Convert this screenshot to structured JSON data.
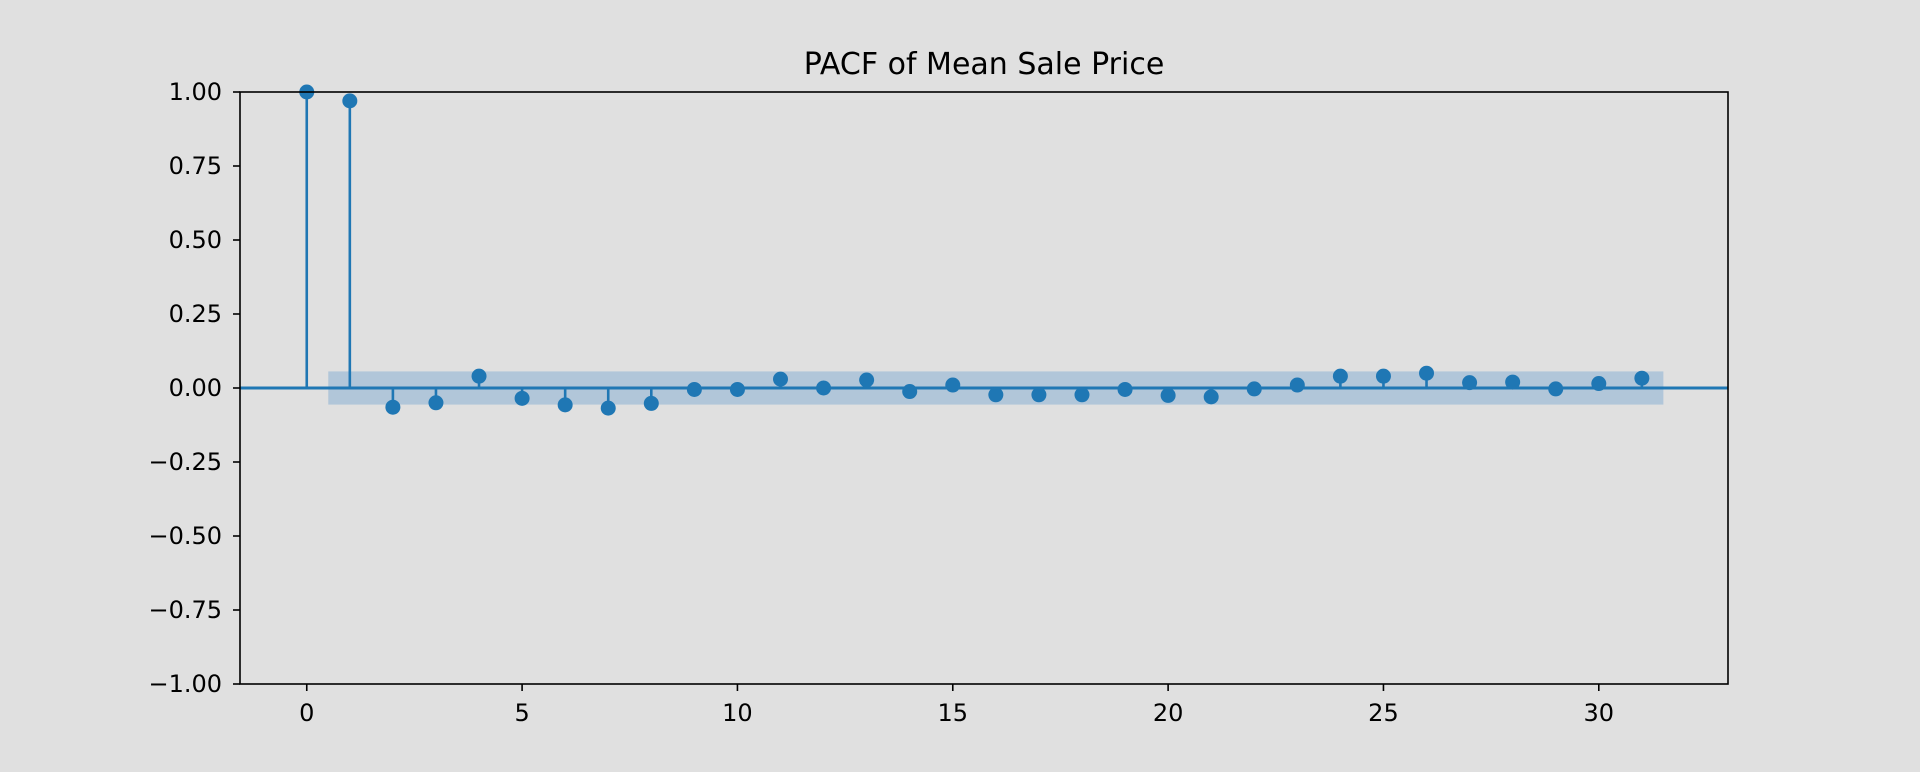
{
  "chart_data": {
    "type": "stem",
    "title": "PACF of Mean Sale Price",
    "xlabel": "",
    "ylabel": "",
    "xlim": [
      -1.55,
      33.0
    ],
    "ylim": [
      -1.0,
      1.0
    ],
    "x_ticks": [
      0,
      5,
      10,
      15,
      20,
      25,
      30
    ],
    "x_tick_labels": [
      "0",
      "5",
      "10",
      "15",
      "20",
      "25",
      "30"
    ],
    "y_ticks": [
      1.0,
      0.75,
      0.5,
      0.25,
      0.0,
      -0.25,
      -0.5,
      -0.75,
      -1.0
    ],
    "y_tick_labels": [
      "1.00",
      "0.75",
      "0.50",
      "0.25",
      "0.00",
      "−0.25",
      "−0.50",
      "−0.75",
      "−1.00"
    ],
    "grid": false,
    "confidence_band": {
      "x_start": 0.5,
      "x_end": 31.5,
      "lower": -0.056,
      "upper": 0.056
    },
    "x": [
      0,
      1,
      2,
      3,
      4,
      5,
      6,
      7,
      8,
      9,
      10,
      11,
      12,
      13,
      14,
      15,
      16,
      17,
      18,
      19,
      20,
      21,
      22,
      23,
      24,
      25,
      26,
      27,
      28,
      29,
      30,
      31
    ],
    "values": [
      1.0,
      0.97,
      -0.065,
      -0.05,
      0.04,
      -0.035,
      -0.057,
      -0.068,
      -0.052,
      -0.005,
      -0.005,
      0.03,
      0.0,
      0.027,
      -0.012,
      0.01,
      -0.023,
      -0.023,
      -0.023,
      -0.005,
      -0.025,
      -0.03,
      -0.003,
      0.01,
      0.04,
      0.04,
      0.05,
      0.018,
      0.02,
      -0.003,
      0.015,
      0.033
    ],
    "colors": {
      "marker": "#1f77b4",
      "band": "#aec4d8",
      "background": "#e0e0e0",
      "axes": "#000000"
    }
  }
}
